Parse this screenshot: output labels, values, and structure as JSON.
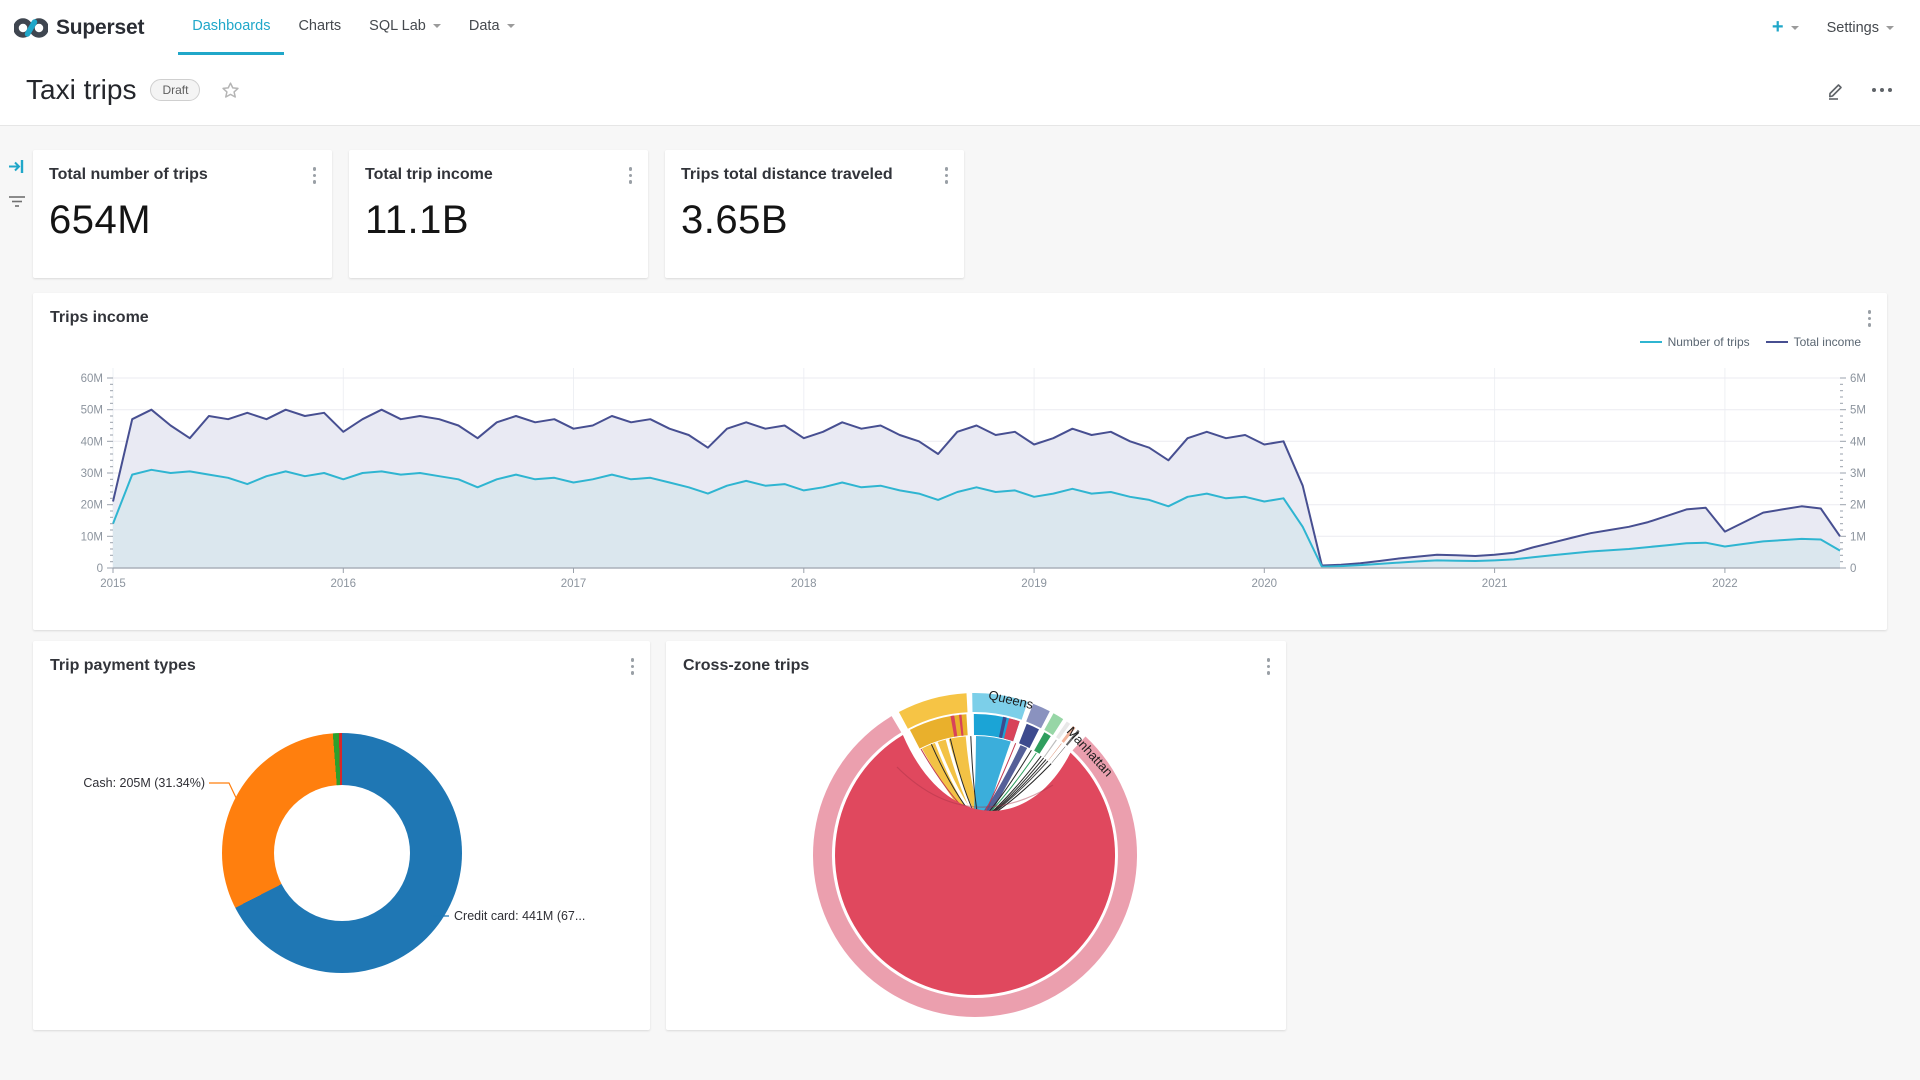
{
  "nav": {
    "brand": "Superset",
    "accent": "#20a7c9",
    "items": [
      {
        "label": "Dashboards",
        "active": true,
        "caret": false
      },
      {
        "label": "Charts",
        "active": false,
        "caret": false
      },
      {
        "label": "SQL Lab",
        "active": false,
        "caret": true
      },
      {
        "label": "Data",
        "active": false,
        "caret": true
      }
    ],
    "new_label": "+",
    "settings_label": "Settings"
  },
  "header": {
    "title": "Taxi trips",
    "status_badge": "Draft"
  },
  "kpis": [
    {
      "title": "Total number of trips",
      "value": "654M"
    },
    {
      "title": "Total trip income",
      "value": "11.1B"
    },
    {
      "title": "Trips total distance traveled",
      "value": "3.65B"
    }
  ],
  "chart_data": [
    {
      "type": "area",
      "title": "Trips income",
      "grid": true,
      "legend_position": "top-right",
      "x_ticks": [
        "2015",
        "2016",
        "2017",
        "2018",
        "2019",
        "2020",
        "2021",
        "2022"
      ],
      "months_per_tick": 12,
      "y_left": {
        "ticks": [
          "60M",
          "50M",
          "40M",
          "30M",
          "20M",
          "10M",
          "0"
        ],
        "max": 60
      },
      "y_right": {
        "ticks": [
          "6M",
          "5M",
          "4M",
          "3M",
          "2M",
          "1M",
          "0"
        ],
        "max": 6
      },
      "series": [
        {
          "name": "Number of trips",
          "axis": "left",
          "color": "#2fb5d1",
          "fill": "#dbe7ee",
          "values": [
            14,
            29.5,
            31,
            30,
            30.5,
            29.5,
            28.5,
            26.5,
            29,
            30.5,
            29,
            30,
            28,
            30,
            30.5,
            29.5,
            30,
            29,
            28,
            25.5,
            28,
            29.5,
            28,
            28.5,
            27,
            28,
            29.5,
            28,
            28.5,
            27,
            25.5,
            23.5,
            26,
            27.5,
            26,
            26.5,
            24.5,
            25.5,
            27,
            25.5,
            26,
            24.5,
            23.5,
            21.5,
            24,
            25.5,
            24,
            24.5,
            22.5,
            23.5,
            25,
            23.5,
            24,
            22.5,
            21.5,
            19.5,
            22.5,
            23.5,
            22,
            22.5,
            21,
            22,
            13,
            0.4,
            0.6,
            0.9,
            1.3,
            1.7,
            2.1,
            2.4,
            2.3,
            2.2,
            2.4,
            2.7,
            3.4,
            4,
            4.6,
            5.2,
            5.6,
            6,
            6.6,
            7.2,
            7.8,
            8,
            6.8,
            7.6,
            8.4,
            8.8,
            9.2,
            9,
            5.5
          ]
        },
        {
          "name": "Total income",
          "axis": "right",
          "color": "#474f91",
          "fill": "#e9eaf3",
          "values": [
            21,
            47,
            50,
            45,
            41,
            48,
            47,
            49,
            47,
            50,
            48,
            49,
            43,
            47,
            50,
            47,
            48,
            47,
            45,
            41,
            46,
            48,
            46,
            47,
            44,
            45,
            48,
            46,
            47,
            44,
            42,
            38,
            44,
            46,
            44,
            45,
            41,
            43,
            46,
            44,
            45,
            42,
            40,
            36,
            43,
            45,
            42,
            43,
            39,
            41,
            44,
            42,
            43,
            40,
            38,
            34,
            41,
            43,
            41,
            42,
            39,
            40,
            26,
            0.8,
            1,
            1.5,
            2.2,
            3,
            3.6,
            4.2,
            4,
            3.8,
            4.2,
            4.8,
            6.5,
            8,
            9.5,
            11,
            12,
            13,
            14.5,
            16.5,
            18.5,
            19,
            11.5,
            14.5,
            17.5,
            18.5,
            19.5,
            18.8,
            10
          ]
        }
      ]
    },
    {
      "type": "pie",
      "title": "Trip payment types",
      "donut": true,
      "slices": [
        {
          "name": "Credit card",
          "label": "Credit card: 441M (67...",
          "value_m": 441,
          "pct": 67.45,
          "color": "#1f77b4"
        },
        {
          "name": "Cash",
          "label": "Cash: 205M (31.34%)",
          "value_m": 205,
          "pct": 31.34,
          "color": "#ff7f0e"
        },
        {
          "pct": 0.8,
          "color": "#2ca02c"
        },
        {
          "pct": 0.41,
          "color": "#d62728"
        }
      ]
    },
    {
      "type": "chord",
      "title": "Cross-zone trips",
      "labels": [
        "Manhattan",
        "Queens"
      ],
      "disk_color": "#e0485e",
      "segments": [
        {
          "name": "Manhattan",
          "start": 43,
          "end": 329,
          "color": "#eb9fae",
          "label_angle": 48
        },
        {
          "start": -28,
          "end": -3,
          "color": "#f6c445",
          "inner": "#e9b02c",
          "ribbon": "band",
          "ribbon_color": "#f2bd35"
        },
        {
          "name": "Queens",
          "start": -1,
          "end": 19,
          "color": "#7ccfe9",
          "inner": "#1ba4d6",
          "ribbon": "band",
          "ribbon_color": "#2aa7d8",
          "label_angle": 13
        },
        {
          "start": 21,
          "end": 27.5,
          "color": "#8a92bf",
          "inner": "#3d4a8e",
          "ribbon": "band",
          "ribbon_color": "#46538f"
        },
        {
          "start": 29,
          "end": 33,
          "color": "#97d6a6",
          "inner": "#2f9e5e",
          "ribbon": "line",
          "ribbon_color": "#2f9e5e"
        },
        {
          "start": 34.5,
          "end": 36,
          "color": "#e8e8e8",
          "inner": "#bdbdbd",
          "ribbon": "line",
          "ribbon_color": "#2a2a2a"
        },
        {
          "start": 37.2,
          "end": 38.4,
          "color": "#f2b49b",
          "inner": "#d98868",
          "ribbon": "line",
          "ribbon_color": "#444444"
        },
        {
          "start": 39.4,
          "end": 40.2,
          "color": "#666666",
          "inner": "#333333",
          "ribbon": "line",
          "ribbon_color": "#222222"
        }
      ],
      "inner_stripes": [
        {
          "a1": -10,
          "a2": -8.5,
          "c": "#d8435a"
        },
        {
          "a1": -6.5,
          "a2": -5.5,
          "c": "#d8435a"
        },
        {
          "a1": 11.5,
          "a2": 13,
          "c": "#3d4a8e"
        },
        {
          "a1": 14,
          "a2": 18.5,
          "c": "#d8435a"
        }
      ],
      "hairlines": [
        {
          "a": -27,
          "c": "#c23b52",
          "w": 1
        },
        {
          "a": -19,
          "c": "#ffffff",
          "w": 3
        },
        {
          "a": -21.5,
          "c": "#2a2a2a",
          "w": 1
        },
        {
          "a": -13.5,
          "c": "#ffffff",
          "w": 3
        },
        {
          "a": -12,
          "c": "#2a2a2a",
          "w": 1
        },
        {
          "a": -2,
          "c": "#2a2a2a",
          "w": 1
        },
        {
          "a": 20,
          "c": "#c23b52",
          "w": 1
        },
        {
          "a": 28.3,
          "c": "#2a2a2a",
          "w": 1
        },
        {
          "a": 33.8,
          "c": "#2a2a2a",
          "w": 1
        },
        {
          "a": 36.6,
          "c": "#2a2a2a",
          "w": 1
        }
      ]
    }
  ]
}
